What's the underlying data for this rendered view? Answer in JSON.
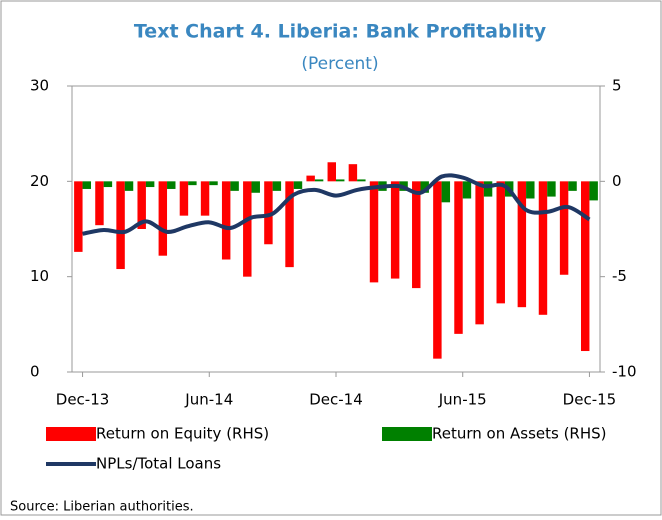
{
  "chart_data": {
    "type": "bar_line_dual",
    "title": "Text Chart 4. Liberia: Bank Profitablity",
    "subtitle": "(Percent)",
    "source": "Source: Liberian authorities.",
    "categories": [
      "Dec-13",
      null,
      null,
      null,
      null,
      null,
      "Jun-14",
      null,
      null,
      null,
      null,
      null,
      "Dec-14",
      null,
      null,
      null,
      null,
      null,
      "Jun-15",
      null,
      null,
      null,
      null,
      null,
      "Dec-15"
    ],
    "series": [
      {
        "name": "Return on Equity (RHS)",
        "color": "#ff0000",
        "kind": "bar",
        "axis": "y2",
        "values": [
          -3.7,
          -2.3,
          -4.6,
          -2.5,
          -3.9,
          -1.8,
          -1.8,
          -4.1,
          -5.0,
          -3.3,
          -4.5,
          0.3,
          1.0,
          0.9,
          -5.3,
          -5.1,
          -5.6,
          -9.3,
          -8.0,
          -7.5,
          -6.4,
          -6.6,
          -7.0,
          -4.9,
          -8.9
        ]
      },
      {
        "name": "Return on Assets (RHS)",
        "color": "#008000",
        "kind": "bar",
        "axis": "y2",
        "values": [
          -0.4,
          -0.3,
          -0.5,
          -0.3,
          -0.4,
          -0.2,
          -0.2,
          -0.5,
          -0.6,
          -0.5,
          -0.4,
          0.1,
          0.1,
          0.1,
          -0.5,
          -0.5,
          -0.6,
          -1.1,
          -0.9,
          -0.8,
          -0.8,
          -0.9,
          -0.8,
          -0.5,
          -1.0
        ]
      },
      {
        "name": "NPLs/Total Loans",
        "color": "#1f3864",
        "kind": "line",
        "values": [
          14.5,
          14.9,
          14.7,
          15.8,
          14.7,
          15.3,
          15.7,
          15.1,
          16.2,
          16.6,
          18.6,
          19.1,
          18.5,
          19.1,
          19.4,
          19.5,
          18.8,
          20.5,
          20.4,
          19.5,
          19.5,
          17.0,
          16.8,
          17.3,
          16.0
        ]
      }
    ],
    "ylim": [
      0,
      30
    ],
    "yticks": [
      0,
      10,
      20,
      30
    ],
    "y2lim": [
      -10,
      5
    ],
    "y2ticks": [
      -10,
      -5,
      0,
      5
    ]
  }
}
